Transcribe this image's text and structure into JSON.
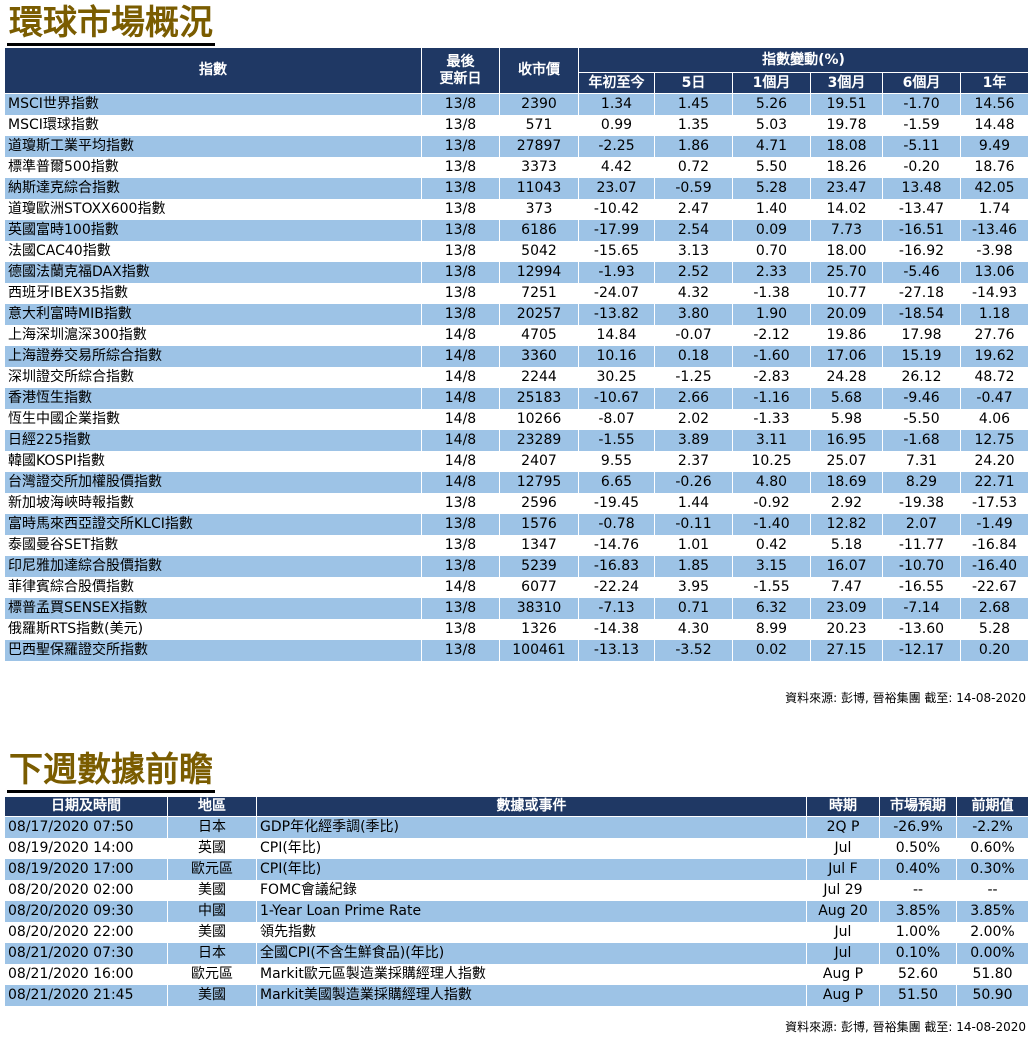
{
  "markets": {
    "title": "環球市場概況",
    "headers": {
      "index": "指數",
      "updated_line1": "最後",
      "updated_line2": "更新日",
      "close": "收市價",
      "change_group": "指數變動(%)",
      "ytd": "年初至今",
      "d5": "5日",
      "m1": "1個月",
      "m3": "3個月",
      "m6": "6個月",
      "y1": "1年"
    },
    "rows": [
      [
        "MSCI世界指數",
        "13/8",
        "2390",
        "1.34",
        "1.45",
        "5.26",
        "19.51",
        "-1.70",
        "14.56"
      ],
      [
        "MSCI環球指數",
        "13/8",
        "571",
        "0.99",
        "1.35",
        "5.03",
        "19.78",
        "-1.59",
        "14.48"
      ],
      [
        "道瓊斯工業平均指數",
        "13/8",
        "27897",
        "-2.25",
        "1.86",
        "4.71",
        "18.08",
        "-5.11",
        "9.49"
      ],
      [
        "標準普爾500指數",
        "13/8",
        "3373",
        "4.42",
        "0.72",
        "5.50",
        "18.26",
        "-0.20",
        "18.76"
      ],
      [
        "納斯達克綜合指數",
        "13/8",
        "11043",
        "23.07",
        "-0.59",
        "5.28",
        "23.47",
        "13.48",
        "42.05"
      ],
      [
        "道瓊歐洲STOXX600指數",
        "13/8",
        "373",
        "-10.42",
        "2.47",
        "1.40",
        "14.02",
        "-13.47",
        "1.74"
      ],
      [
        "英國富時100指數",
        "13/8",
        "6186",
        "-17.99",
        "2.54",
        "0.09",
        "7.73",
        "-16.51",
        "-13.46"
      ],
      [
        "法國CAC40指數",
        "13/8",
        "5042",
        "-15.65",
        "3.13",
        "0.70",
        "18.00",
        "-16.92",
        "-3.98"
      ],
      [
        "德國法蘭克福DAX指數",
        "13/8",
        "12994",
        "-1.93",
        "2.52",
        "2.33",
        "25.70",
        "-5.46",
        "13.06"
      ],
      [
        "西班牙IBEX35指數",
        "13/8",
        "7251",
        "-24.07",
        "4.32",
        "-1.38",
        "10.77",
        "-27.18",
        "-14.93"
      ],
      [
        "意大利富時MIB指數",
        "13/8",
        "20257",
        "-13.82",
        "3.80",
        "1.90",
        "20.09",
        "-18.54",
        "1.18"
      ],
      [
        "上海深圳滬深300指數",
        "14/8",
        "4705",
        "14.84",
        "-0.07",
        "-2.12",
        "19.86",
        "17.98",
        "27.76"
      ],
      [
        "上海證券交易所綜合指數",
        "14/8",
        "3360",
        "10.16",
        "0.18",
        "-1.60",
        "17.06",
        "15.19",
        "19.62"
      ],
      [
        "深圳證交所綜合指數",
        "14/8",
        "2244",
        "30.25",
        "-1.25",
        "-2.83",
        "24.28",
        "26.12",
        "48.72"
      ],
      [
        "香港恆生指數",
        "14/8",
        "25183",
        "-10.67",
        "2.66",
        "-1.16",
        "5.68",
        "-9.46",
        "-0.47"
      ],
      [
        "恆生中國企業指數",
        "14/8",
        "10266",
        "-8.07",
        "2.02",
        "-1.33",
        "5.98",
        "-5.50",
        "4.06"
      ],
      [
        "日經225指數",
        "14/8",
        "23289",
        "-1.55",
        "3.89",
        "3.11",
        "16.95",
        "-1.68",
        "12.75"
      ],
      [
        "韓國KOSPI指數",
        "14/8",
        "2407",
        "9.55",
        "2.37",
        "10.25",
        "25.07",
        "7.31",
        "24.20"
      ],
      [
        "台灣證交所加權股價指數",
        "14/8",
        "12795",
        "6.65",
        "-0.26",
        "4.80",
        "18.69",
        "8.29",
        "22.71"
      ],
      [
        "新加坡海峽時報指數",
        "13/8",
        "2596",
        "-19.45",
        "1.44",
        "-0.92",
        "2.92",
        "-19.38",
        "-17.53"
      ],
      [
        "富時馬來西亞證交所KLCI指數",
        "13/8",
        "1576",
        "-0.78",
        "-0.11",
        "-1.40",
        "12.82",
        "2.07",
        "-1.49"
      ],
      [
        "泰國曼谷SET指數",
        "13/8",
        "1347",
        "-14.76",
        "1.01",
        "0.42",
        "5.18",
        "-11.77",
        "-16.84"
      ],
      [
        "印尼雅加達綜合股價指數",
        "13/8",
        "5239",
        "-16.83",
        "1.85",
        "3.15",
        "16.07",
        "-10.70",
        "-16.40"
      ],
      [
        "菲律賓綜合股價指數",
        "14/8",
        "6077",
        "-22.24",
        "3.95",
        "-1.55",
        "7.47",
        "-16.55",
        "-22.67"
      ],
      [
        "標普孟買SENSEX指數",
        "13/8",
        "38310",
        "-7.13",
        "0.71",
        "6.32",
        "23.09",
        "-7.14",
        "2.68"
      ],
      [
        "俄羅斯RTS指數(美元)",
        "13/8",
        "1326",
        "-14.38",
        "4.30",
        "8.99",
        "20.23",
        "-13.60",
        "5.28"
      ],
      [
        "巴西聖保羅證交所指數",
        "13/8",
        "100461",
        "-13.13",
        "-3.52",
        "0.02",
        "27.15",
        "-12.17",
        "0.20"
      ]
    ],
    "source": "資料來源: 彭博, 晉裕集團 截至: 14-08-2020"
  },
  "calendar": {
    "title": "下週數據前瞻",
    "headers": {
      "datetime": "日期及時間",
      "region": "地區",
      "event": "數據或事件",
      "period": "時期",
      "forecast": "市場預期",
      "previous": "前期值"
    },
    "rows": [
      [
        "08/17/2020 07:50",
        "日本",
        "GDP年化經季調(季比)",
        "2Q P",
        "-26.9%",
        "-2.2%"
      ],
      [
        "08/19/2020 14:00",
        "英國",
        "CPI(年比)",
        "Jul",
        "0.50%",
        "0.60%"
      ],
      [
        "08/19/2020 17:00",
        "歐元區",
        "CPI(年比)",
        "Jul F",
        "0.40%",
        "0.30%"
      ],
      [
        "08/20/2020 02:00",
        "美國",
        "FOMC會議紀錄",
        "Jul 29",
        "--",
        "--"
      ],
      [
        "08/20/2020 09:30",
        "中國",
        "1-Year Loan Prime Rate",
        "Aug 20",
        "3.85%",
        "3.85%"
      ],
      [
        "08/20/2020 22:00",
        "美國",
        "領先指數",
        "Jul",
        "1.00%",
        "2.00%"
      ],
      [
        "08/21/2020 07:30",
        "日本",
        "全國CPI(不含生鮮食品)(年比)",
        "Jul",
        "0.10%",
        "0.00%"
      ],
      [
        "08/21/2020 16:00",
        "歐元區",
        "Markit歐元區製造業採購經理人指數",
        "Aug P",
        "52.60",
        "51.80"
      ],
      [
        "08/21/2020 21:45",
        "美國",
        "Markit美國製造業採購經理人指數",
        "Aug P",
        "51.50",
        "50.90"
      ]
    ],
    "source": "資料來源: 彭博, 晉裕集團 截至: 14-08-2020"
  }
}
